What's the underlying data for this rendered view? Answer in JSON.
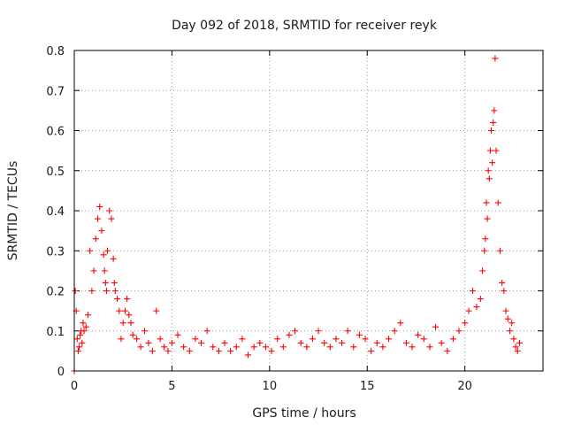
{
  "chart_data": {
    "type": "scatter",
    "title": "Day 092 of 2018, SRMTID for receiver reyk",
    "xlabel": "GPS time / hours",
    "ylabel": "SRMTID / TECUs",
    "xlim": [
      0,
      24
    ],
    "ylim": [
      0,
      0.8
    ],
    "xticks": [
      0,
      5,
      10,
      15,
      20
    ],
    "xtick_labels": [
      "0",
      "5",
      "10",
      "15",
      "20"
    ],
    "yticks": [
      0,
      0.1,
      0.2,
      0.3,
      0.4,
      0.5,
      0.6,
      0.7,
      0.8
    ],
    "ytick_labels": [
      "0",
      "0.1",
      "0.2",
      "0.3",
      "0.4",
      "0.5",
      "0.6",
      "0.7",
      "0.8"
    ],
    "grid": true,
    "marker": "+",
    "color": "#ff0000",
    "series": [
      {
        "name": "SRMTID",
        "x": [
          0.0,
          0.05,
          0.1,
          0.15,
          0.2,
          0.25,
          0.3,
          0.35,
          0.4,
          0.45,
          0.5,
          0.6,
          0.7,
          0.8,
          0.9,
          1.0,
          1.1,
          1.2,
          1.3,
          1.4,
          1.5,
          1.55,
          1.6,
          1.65,
          1.7,
          1.8,
          1.9,
          2.0,
          2.05,
          2.1,
          2.2,
          2.3,
          2.4,
          2.5,
          2.6,
          2.7,
          2.8,
          2.9,
          3.0,
          3.2,
          3.4,
          3.6,
          3.8,
          4.0,
          4.2,
          4.4,
          4.6,
          4.8,
          5.0,
          5.3,
          5.6,
          5.9,
          6.2,
          6.5,
          6.8,
          7.1,
          7.4,
          7.7,
          8.0,
          8.3,
          8.6,
          8.9,
          9.2,
          9.5,
          9.8,
          10.1,
          10.4,
          10.7,
          11.0,
          11.3,
          11.6,
          11.9,
          12.2,
          12.5,
          12.8,
          13.1,
          13.4,
          13.7,
          14.0,
          14.3,
          14.6,
          14.9,
          15.2,
          15.5,
          15.8,
          16.1,
          16.4,
          16.7,
          17.0,
          17.3,
          17.6,
          17.9,
          18.2,
          18.5,
          18.8,
          19.1,
          19.4,
          19.7,
          20.0,
          20.2,
          20.4,
          20.6,
          20.8,
          20.9,
          21.0,
          21.05,
          21.1,
          21.15,
          21.2,
          21.25,
          21.3,
          21.35,
          21.4,
          21.45,
          21.5,
          21.55,
          21.6,
          21.7,
          21.8,
          21.9,
          22.0,
          22.1,
          22.2,
          22.3,
          22.4,
          22.5,
          22.6,
          22.7,
          22.8
        ],
        "y": [
          0.0,
          0.2,
          0.15,
          0.08,
          0.05,
          0.06,
          0.09,
          0.1,
          0.07,
          0.12,
          0.1,
          0.11,
          0.14,
          0.3,
          0.2,
          0.25,
          0.33,
          0.38,
          0.41,
          0.35,
          0.29,
          0.25,
          0.22,
          0.2,
          0.3,
          0.4,
          0.38,
          0.28,
          0.22,
          0.2,
          0.18,
          0.15,
          0.08,
          0.12,
          0.15,
          0.18,
          0.14,
          0.12,
          0.09,
          0.08,
          0.06,
          0.1,
          0.07,
          0.05,
          0.15,
          0.08,
          0.06,
          0.05,
          0.07,
          0.09,
          0.06,
          0.05,
          0.08,
          0.07,
          0.1,
          0.06,
          0.05,
          0.07,
          0.05,
          0.06,
          0.08,
          0.04,
          0.06,
          0.07,
          0.06,
          0.05,
          0.08,
          0.06,
          0.09,
          0.1,
          0.07,
          0.06,
          0.08,
          0.1,
          0.07,
          0.06,
          0.08,
          0.07,
          0.1,
          0.06,
          0.09,
          0.08,
          0.05,
          0.07,
          0.06,
          0.08,
          0.1,
          0.12,
          0.07,
          0.06,
          0.09,
          0.08,
          0.06,
          0.11,
          0.07,
          0.05,
          0.08,
          0.1,
          0.12,
          0.15,
          0.2,
          0.16,
          0.18,
          0.25,
          0.3,
          0.33,
          0.42,
          0.38,
          0.5,
          0.48,
          0.55,
          0.6,
          0.52,
          0.62,
          0.65,
          0.78,
          0.55,
          0.42,
          0.3,
          0.22,
          0.2,
          0.15,
          0.13,
          0.1,
          0.12,
          0.08,
          0.06,
          0.05,
          0.07
        ]
      }
    ]
  }
}
